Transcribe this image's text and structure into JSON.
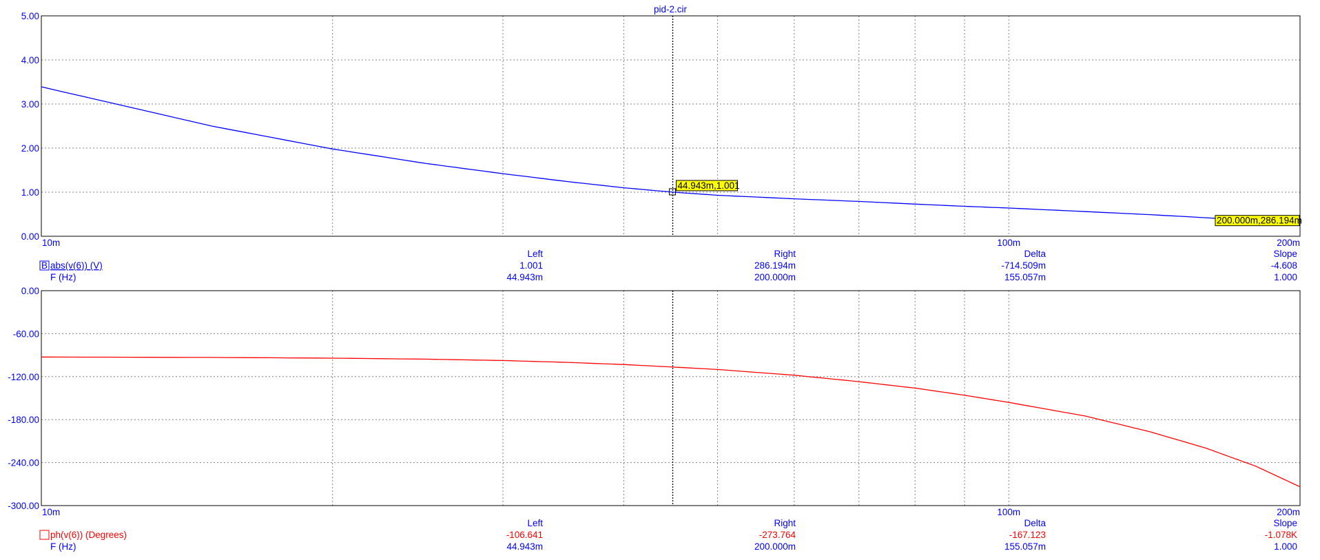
{
  "title": "pid-2.cir",
  "colors": {
    "text": "#0000ff",
    "grid": "#808080",
    "magnitude": "#0000ff",
    "phase": "#ff0000",
    "cursor_label_bg": "#ffff00"
  },
  "x_axis": {
    "scale": "log",
    "range": [
      0.01,
      0.2
    ],
    "ticks": [
      "10m",
      "100m",
      "200m"
    ],
    "label": "F (Hz)"
  },
  "cursor_table": {
    "headers": {
      "left": "Left",
      "right": "Right",
      "delta": "Delta",
      "slope": "Slope"
    }
  },
  "chart_data": [
    {
      "type": "line",
      "title": "pid-2.cir",
      "xscale": "log",
      "xlim": [
        0.01,
        0.2
      ],
      "ylim": [
        0,
        5
      ],
      "yticks": [
        "5.00",
        "4.00",
        "3.00",
        "2.00",
        "1.00",
        "0.00"
      ],
      "grid": true,
      "series": [
        {
          "name": "abs(v(6)) (V)",
          "marker": "B",
          "x": [
            0.01,
            0.015,
            0.02,
            0.025,
            0.03,
            0.035,
            0.04,
            0.044943,
            0.05,
            0.06,
            0.07,
            0.08,
            0.09,
            0.1,
            0.12,
            0.14,
            0.16,
            0.18,
            0.2
          ],
          "y": [
            3.39,
            2.5,
            1.98,
            1.65,
            1.42,
            1.24,
            1.1,
            1.001,
            0.93,
            0.85,
            0.79,
            0.73,
            0.68,
            0.64,
            0.56,
            0.49,
            0.42,
            0.35,
            0.286
          ]
        }
      ],
      "cursors": {
        "x_label": "F (Hz)",
        "left": {
          "y": "1.001",
          "x": "44.943m",
          "label": "44.943m,1.001"
        },
        "right": {
          "y": "286.194m",
          "x": "200.000m",
          "label": "200.000m,286.194m"
        },
        "delta": {
          "y": "-714.509m",
          "x": "155.057m"
        },
        "slope": {
          "y": "-4.608",
          "x": "1.000"
        }
      }
    },
    {
      "type": "line",
      "xscale": "log",
      "xlim": [
        0.01,
        0.2
      ],
      "ylim": [
        -300,
        0
      ],
      "yticks": [
        "0.00",
        "-60.00",
        "-120.00",
        "-180.00",
        "-240.00",
        "-300.00"
      ],
      "grid": true,
      "series": [
        {
          "name": "ph(v(6)) (Degrees)",
          "marker": "",
          "x": [
            0.01,
            0.015,
            0.02,
            0.025,
            0.03,
            0.035,
            0.04,
            0.044943,
            0.05,
            0.06,
            0.07,
            0.08,
            0.09,
            0.1,
            0.12,
            0.14,
            0.16,
            0.18,
            0.2
          ],
          "y": [
            -92.6,
            -93.2,
            -94.2,
            -95.6,
            -97.5,
            -100.1,
            -103.1,
            -106.6,
            -110.0,
            -118.0,
            -127.0,
            -136.0,
            -146.0,
            -156.0,
            -175.0,
            -197.0,
            -220.0,
            -245.0,
            -273.764
          ]
        }
      ],
      "cursors": {
        "x_label": "F (Hz)",
        "left": {
          "y": "-106.641",
          "x": "44.943m"
        },
        "right": {
          "y": "-273.764",
          "x": "200.000m"
        },
        "delta": {
          "y": "-167.123",
          "x": "155.057m"
        },
        "slope": {
          "y": "-1.078K",
          "x": "1.000"
        }
      }
    }
  ]
}
